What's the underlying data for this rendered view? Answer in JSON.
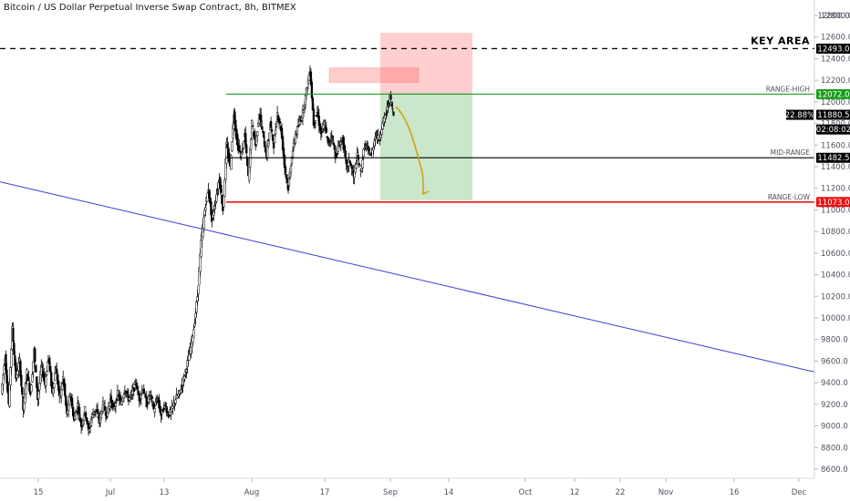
{
  "header": {
    "title": "Bitcoin / US Dollar Perpetual Inverse Swap Contract, 8h, BITMEX"
  },
  "chart_data": {
    "type": "candlestick",
    "title": "Bitcoin / US Dollar Perpetual Inverse Swap Contract, 8h, BITMEX",
    "ylim": [
      8400,
      12950
    ],
    "y_ticks": [
      12800,
      12600,
      12400,
      12200,
      12000,
      11800,
      11600,
      11400,
      11200,
      11000,
      10800,
      10600,
      10400,
      10200,
      10000,
      9800,
      9600,
      9400,
      9200,
      9000,
      8800,
      8600
    ],
    "x_ticks": [
      "15",
      "Jul",
      "13",
      "Aug",
      "17",
      "Sep",
      "14",
      "Oct",
      "12",
      "22",
      "Nov",
      "16",
      "Dec"
    ],
    "price_path": [
      9300,
      9650,
      9200,
      9900,
      9450,
      9600,
      9150,
      9500,
      9300,
      9700,
      9250,
      9550,
      9400,
      9650,
      9300,
      9550,
      9250,
      9450,
      9100,
      9300,
      9050,
      9200,
      9000,
      9150,
      8950,
      9100,
      9150,
      9050,
      9200,
      9100,
      9250,
      9150,
      9300,
      9200,
      9350,
      9250,
      9300,
      9400,
      9250,
      9350,
      9200,
      9300,
      9150,
      9250,
      9100,
      9200,
      9100,
      9150,
      9250,
      9300,
      9400,
      9550,
      9700,
      9900,
      10200,
      10700,
      11000,
      11200,
      10900,
      11100,
      11300,
      11000,
      11600,
      11400,
      11900,
      11600,
      11500,
      11700,
      11300,
      11800,
      11600,
      11900,
      11700,
      11500,
      11800,
      11600,
      11900,
      11750,
      11400,
      11200,
      11500,
      11700,
      11800,
      11900,
      12100,
      12300,
      11800,
      11900,
      11700,
      11800,
      11600,
      11700,
      11500,
      11600,
      11650,
      11400,
      11450,
      11300,
      11500,
      11350,
      11600,
      11550,
      11500,
      11700,
      11650,
      11800,
      11900,
      12050,
      11880
    ],
    "levels": [
      {
        "label": "KEY AREA",
        "value": 12493.0,
        "color": "#000000",
        "style": "dashed"
      },
      {
        "label": "RANGE-HIGH",
        "value": 12072.0,
        "color": "#1a9e1a",
        "style": "solid"
      },
      {
        "label": "MID-RANGE",
        "value": 11482.5,
        "color": "#000000",
        "style": "solid"
      },
      {
        "label": "RANGE-LOW",
        "value": 11073.0,
        "color": "#ee1111",
        "style": "solid"
      }
    ],
    "price_badges": [
      {
        "text": "12800.0",
        "value": 12800
      },
      {
        "text": "12493.0",
        "value": 12493.0,
        "bg": "#000000"
      },
      {
        "text": "12072.0",
        "value": 12072.0,
        "bg": "#1a9e1a"
      },
      {
        "text": "11880.5",
        "value": 11880.5,
        "bg": "#000000"
      },
      {
        "text": "02:08:02",
        "value": 11745,
        "bg": "#000000"
      },
      {
        "text": "11482.5",
        "value": 11482.5,
        "bg": "#000000"
      },
      {
        "text": "11073.0",
        "value": 11073.0,
        "bg": "#ee1111"
      }
    ],
    "position_pct": "22.88%",
    "short_position": {
      "entry": 12072.0,
      "stop": 12640,
      "target": 11090
    },
    "trendline": {
      "from": 11260,
      "to": 9500
    }
  }
}
